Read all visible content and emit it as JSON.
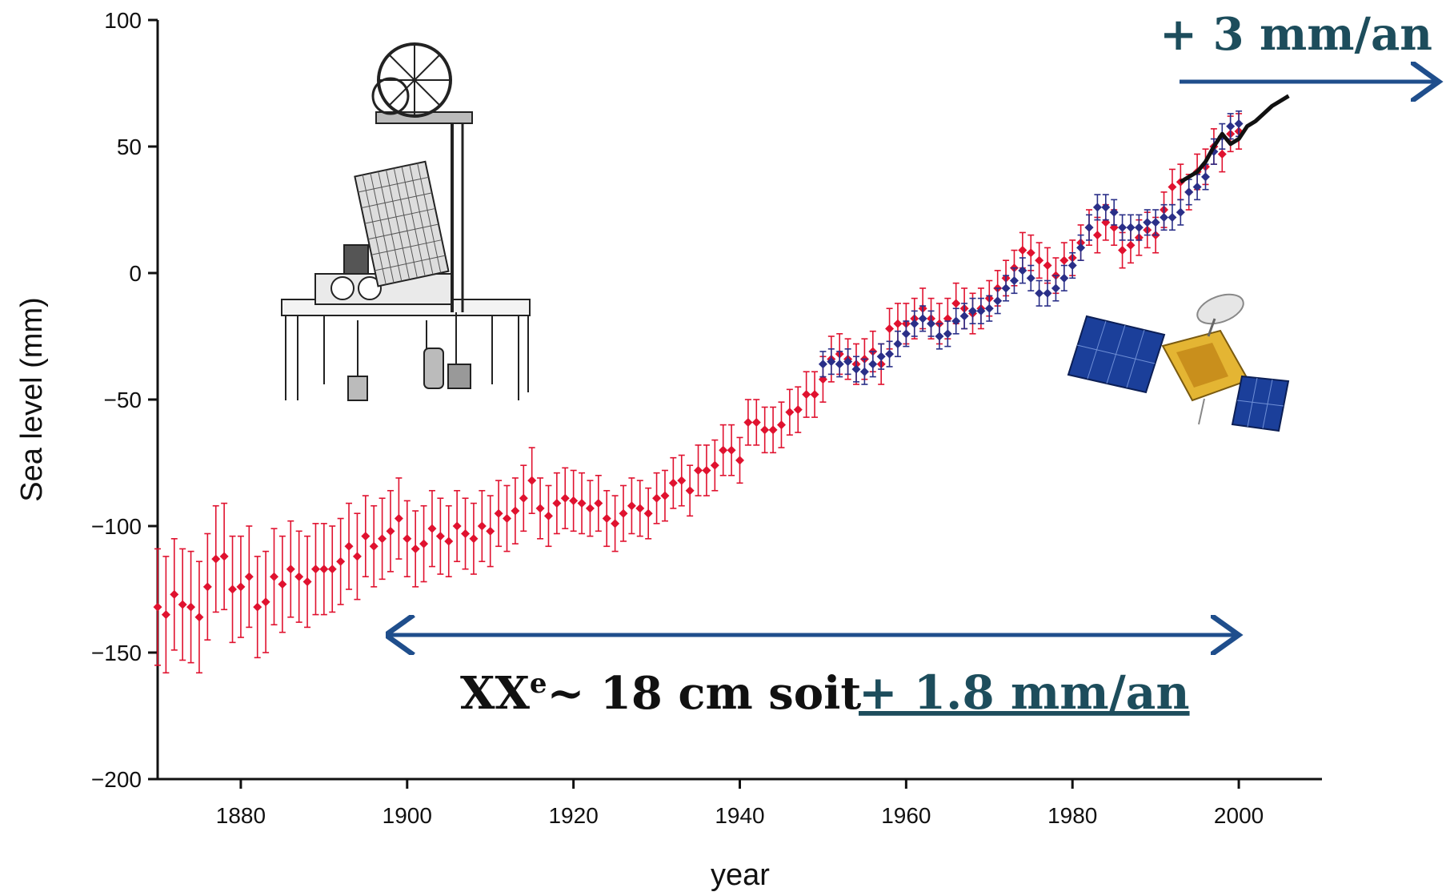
{
  "chart_data": {
    "type": "scatter",
    "xlabel": "year",
    "ylabel": "Sea level (mm)",
    "xlim": [
      1870,
      2010
    ],
    "ylim": [
      -200,
      100
    ],
    "xticks": [
      1880,
      1900,
      1920,
      1940,
      1960,
      1980,
      2000
    ],
    "yticks": [
      100,
      50,
      0,
      -50,
      -100,
      -150,
      -200
    ],
    "grid": false,
    "colors": {
      "red": "#e0122f",
      "blue": "#2a2f88",
      "black": "#111111",
      "arrow": "#1f4e8c",
      "annotation": "#1d4d5c"
    },
    "series": [
      {
        "color_key": "red",
        "points": [
          [
            1870,
            -132
          ],
          [
            1871,
            -135
          ],
          [
            1872,
            -127
          ],
          [
            1873,
            -131
          ],
          [
            1874,
            -132
          ],
          [
            1875,
            -136
          ],
          [
            1876,
            -124
          ],
          [
            1877,
            -113
          ],
          [
            1878,
            -112
          ],
          [
            1879,
            -125
          ],
          [
            1880,
            -124
          ],
          [
            1881,
            -120
          ],
          [
            1882,
            -132
          ],
          [
            1883,
            -130
          ],
          [
            1884,
            -120
          ],
          [
            1885,
            -123
          ],
          [
            1886,
            -117
          ],
          [
            1887,
            -120
          ],
          [
            1888,
            -122
          ],
          [
            1889,
            -117
          ],
          [
            1890,
            -117
          ],
          [
            1891,
            -117
          ],
          [
            1892,
            -114
          ],
          [
            1893,
            -108
          ],
          [
            1894,
            -112
          ],
          [
            1895,
            -104
          ],
          [
            1896,
            -108
          ],
          [
            1897,
            -105
          ],
          [
            1898,
            -102
          ],
          [
            1899,
            -97
          ],
          [
            1900,
            -105
          ],
          [
            1901,
            -109
          ],
          [
            1902,
            -107
          ],
          [
            1903,
            -101
          ],
          [
            1904,
            -104
          ],
          [
            1905,
            -106
          ],
          [
            1906,
            -100
          ],
          [
            1907,
            -103
          ],
          [
            1908,
            -105
          ],
          [
            1909,
            -100
          ],
          [
            1910,
            -102
          ],
          [
            1911,
            -95
          ],
          [
            1912,
            -97
          ],
          [
            1913,
            -94
          ],
          [
            1914,
            -89
          ],
          [
            1915,
            -82
          ],
          [
            1916,
            -93
          ],
          [
            1917,
            -96
          ],
          [
            1918,
            -91
          ],
          [
            1919,
            -89
          ],
          [
            1920,
            -90
          ],
          [
            1921,
            -91
          ],
          [
            1922,
            -93
          ],
          [
            1923,
            -91
          ],
          [
            1924,
            -97
          ],
          [
            1925,
            -99
          ],
          [
            1926,
            -95
          ],
          [
            1927,
            -92
          ],
          [
            1928,
            -93
          ],
          [
            1929,
            -95
          ],
          [
            1930,
            -89
          ],
          [
            1931,
            -88
          ],
          [
            1932,
            -83
          ],
          [
            1933,
            -82
          ],
          [
            1934,
            -86
          ],
          [
            1935,
            -78
          ],
          [
            1936,
            -78
          ],
          [
            1937,
            -76
          ],
          [
            1938,
            -70
          ],
          [
            1939,
            -70
          ],
          [
            1940,
            -74
          ],
          [
            1941,
            -59
          ],
          [
            1942,
            -59
          ],
          [
            1943,
            -62
          ],
          [
            1944,
            -62
          ],
          [
            1945,
            -60
          ],
          [
            1946,
            -55
          ],
          [
            1947,
            -54
          ],
          [
            1948,
            -48
          ],
          [
            1949,
            -48
          ],
          [
            1950,
            -42
          ],
          [
            1951,
            -34
          ],
          [
            1952,
            -32
          ],
          [
            1953,
            -34
          ],
          [
            1954,
            -36
          ],
          [
            1955,
            -34
          ],
          [
            1956,
            -31
          ],
          [
            1957,
            -36
          ],
          [
            1958,
            -22
          ],
          [
            1959,
            -20
          ],
          [
            1960,
            -20
          ],
          [
            1961,
            -18
          ],
          [
            1962,
            -14
          ],
          [
            1963,
            -18
          ],
          [
            1964,
            -20
          ],
          [
            1965,
            -18
          ],
          [
            1966,
            -12
          ],
          [
            1967,
            -14
          ],
          [
            1968,
            -16
          ],
          [
            1969,
            -14
          ],
          [
            1970,
            -10
          ],
          [
            1971,
            -6
          ],
          [
            1972,
            -2
          ],
          [
            1973,
            2
          ],
          [
            1974,
            9
          ],
          [
            1975,
            8
          ],
          [
            1976,
            5
          ],
          [
            1977,
            3
          ],
          [
            1978,
            -1
          ],
          [
            1979,
            5
          ],
          [
            1980,
            6
          ],
          [
            1981,
            12
          ],
          [
            1982,
            18
          ],
          [
            1983,
            15
          ],
          [
            1984,
            20
          ],
          [
            1985,
            18
          ],
          [
            1986,
            9
          ],
          [
            1987,
            11
          ],
          [
            1988,
            14
          ],
          [
            1989,
            17
          ],
          [
            1990,
            15
          ],
          [
            1991,
            25
          ],
          [
            1992,
            34
          ],
          [
            1993,
            36
          ],
          [
            1994,
            32
          ],
          [
            1995,
            40
          ],
          [
            1996,
            42
          ],
          [
            1997,
            50
          ],
          [
            1998,
            47
          ],
          [
            1999,
            55
          ],
          [
            2000,
            56
          ]
        ],
        "errors": [
          23,
          23,
          22,
          22,
          22,
          22,
          21,
          21,
          21,
          21,
          20,
          20,
          20,
          20,
          19,
          19,
          19,
          18,
          18,
          18,
          18,
          17,
          17,
          17,
          17,
          16,
          16,
          16,
          16,
          16,
          15,
          15,
          15,
          15,
          15,
          14,
          14,
          14,
          14,
          14,
          14,
          13,
          13,
          13,
          13,
          13,
          12,
          12,
          12,
          12,
          12,
          12,
          11,
          11,
          11,
          11,
          11,
          11,
          11,
          10,
          10,
          10,
          10,
          10,
          10,
          10,
          10,
          10,
          10,
          10,
          9,
          9,
          9,
          9,
          9,
          9,
          9,
          9,
          9,
          9,
          9,
          9,
          8,
          8,
          8,
          8,
          8,
          8,
          8,
          8,
          8,
          8,
          8,
          8,
          8,
          8,
          8,
          8,
          8,
          8,
          7,
          7,
          7,
          7,
          7,
          7,
          7,
          7,
          7,
          7,
          7,
          7,
          7,
          7,
          7,
          7,
          7,
          7,
          7,
          7,
          7,
          7,
          7,
          7,
          7,
          7,
          7,
          7,
          7,
          7,
          7
        ]
      },
      {
        "color_key": "blue",
        "points": [
          [
            1950,
            -36
          ],
          [
            1951,
            -35
          ],
          [
            1952,
            -36
          ],
          [
            1953,
            -35
          ],
          [
            1954,
            -38
          ],
          [
            1955,
            -39
          ],
          [
            1956,
            -36
          ],
          [
            1957,
            -33
          ],
          [
            1958,
            -32
          ],
          [
            1959,
            -28
          ],
          [
            1960,
            -24
          ],
          [
            1961,
            -20
          ],
          [
            1962,
            -18
          ],
          [
            1963,
            -20
          ],
          [
            1964,
            -25
          ],
          [
            1965,
            -24
          ],
          [
            1966,
            -19
          ],
          [
            1967,
            -17
          ],
          [
            1968,
            -15
          ],
          [
            1969,
            -15
          ],
          [
            1970,
            -14
          ],
          [
            1971,
            -11
          ],
          [
            1972,
            -6
          ],
          [
            1973,
            -3
          ],
          [
            1974,
            1
          ],
          [
            1975,
            -2
          ],
          [
            1976,
            -8
          ],
          [
            1977,
            -8
          ],
          [
            1978,
            -6
          ],
          [
            1979,
            -2
          ],
          [
            1980,
            3
          ],
          [
            1981,
            10
          ],
          [
            1982,
            18
          ],
          [
            1983,
            26
          ],
          [
            1984,
            26
          ],
          [
            1985,
            24
          ],
          [
            1986,
            18
          ],
          [
            1987,
            18
          ],
          [
            1988,
            18
          ],
          [
            1989,
            20
          ],
          [
            1990,
            20
          ],
          [
            1991,
            22
          ],
          [
            1992,
            22
          ],
          [
            1993,
            24
          ],
          [
            1994,
            32
          ],
          [
            1995,
            34
          ],
          [
            1996,
            38
          ],
          [
            1997,
            48
          ],
          [
            1998,
            54
          ],
          [
            1999,
            58
          ],
          [
            2000,
            59
          ]
        ],
        "errors": [
          5,
          5,
          5,
          5,
          5,
          5,
          5,
          5,
          5,
          5,
          5,
          5,
          5,
          5,
          5,
          5,
          5,
          5,
          5,
          5,
          5,
          5,
          5,
          5,
          5,
          5,
          5,
          5,
          5,
          5,
          5,
          5,
          5,
          5,
          5,
          5,
          5,
          5,
          5,
          5,
          5,
          5,
          5,
          5,
          5,
          5,
          5,
          5,
          5,
          5,
          5
        ]
      },
      {
        "color_key": "black",
        "points": [
          [
            1993,
            36
          ],
          [
            1994,
            38
          ],
          [
            1995,
            40
          ],
          [
            1996,
            44
          ],
          [
            1997,
            50
          ],
          [
            1998,
            55
          ],
          [
            1999,
            51
          ],
          [
            2000,
            53
          ],
          [
            2001,
            58
          ],
          [
            2002,
            60
          ],
          [
            2003,
            63
          ],
          [
            2004,
            66
          ],
          [
            2005,
            68
          ],
          [
            2006,
            70
          ]
        ]
      }
    ]
  },
  "annotations": {
    "top_rate": "+ 3 mm/an",
    "century_prefix": "XX",
    "century_sup": "e",
    "century_middle": "~  18 cm soit",
    "century_rate": "+ 1.8 mm/an"
  },
  "icons": {
    "tide_gauge": "tide-gauge-illustration",
    "satellite": "satellite-illustration"
  }
}
